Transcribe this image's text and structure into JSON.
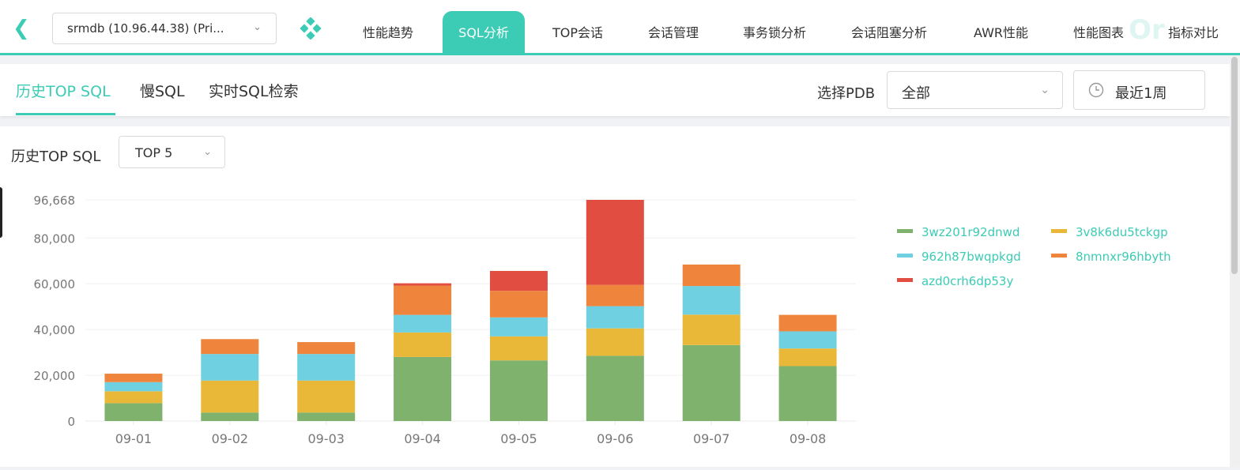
{
  "topbar": {
    "db_select": "srmdb (10.96.44.38) (Pri...",
    "watermark": "Or",
    "nav": [
      {
        "label": "性能趋势"
      },
      {
        "label": "SQL分析",
        "active": true
      },
      {
        "label": "TOP会话"
      },
      {
        "label": "会话管理"
      },
      {
        "label": "事务锁分析"
      },
      {
        "label": "会话阻塞分析"
      },
      {
        "label": "AWR性能"
      },
      {
        "label": "性能图表"
      },
      {
        "label": "指标对比"
      }
    ]
  },
  "subbar": {
    "tabs": [
      {
        "label": "历史TOP SQL",
        "active": true
      },
      {
        "label": "慢SQL"
      },
      {
        "label": "实时SQL检索"
      }
    ],
    "pdb_label": "选择PDB",
    "pdb_value": "全部",
    "time_range": "最近1周"
  },
  "panel": {
    "title": "历史TOP SQL",
    "top_select": "TOP 5"
  },
  "colors": {
    "accent": "#3ccbb4",
    "green": "#7eb26d",
    "yellow": "#eab839",
    "cyan": "#6ed0e0",
    "orange": "#ef843c",
    "red": "#e24d42"
  },
  "icons": [
    "back-icon",
    "chevron-down-icon",
    "app-logo-icon",
    "clock-icon"
  ],
  "chart_data": {
    "type": "bar",
    "stacked": true,
    "categories": [
      "09-01",
      "09-02",
      "09-03",
      "09-04",
      "09-05",
      "09-06",
      "09-07",
      "09-08"
    ],
    "yticks": [
      "0",
      "20,000",
      "40,000",
      "60,000",
      "80,000",
      "96,668"
    ],
    "ylim": [
      0,
      96668
    ],
    "legend_position": "right",
    "series": [
      {
        "name": "3wz201r92dnwd",
        "color": "#7eb26d",
        "values": [
          7800,
          3700,
          3700,
          28000,
          26500,
          28500,
          33200,
          24000
        ]
      },
      {
        "name": "3v8k6du5tckgp",
        "color": "#eab839",
        "values": [
          5200,
          14000,
          14000,
          10700,
          10500,
          12000,
          13300,
          7700
        ]
      },
      {
        "name": "962h87bwqpkgd",
        "color": "#6ed0e0",
        "values": [
          4000,
          11600,
          11600,
          7700,
          8300,
          9700,
          12500,
          7500
        ]
      },
      {
        "name": "8nmnxr96hbyth",
        "color": "#ef843c",
        "values": [
          3700,
          6500,
          5200,
          12800,
          11600,
          9300,
          9400,
          7200
        ]
      },
      {
        "name": "azd0crh6dp53y",
        "color": "#e24d42",
        "values": [
          0,
          0,
          0,
          1000,
          8700,
          37168,
          0,
          0
        ]
      }
    ]
  }
}
